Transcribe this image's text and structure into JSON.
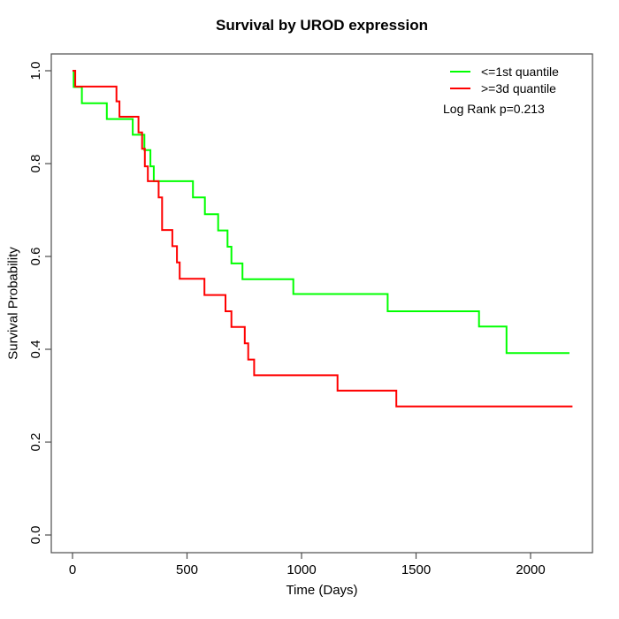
{
  "chart_data": {
    "type": "line",
    "variant": "kaplan_meier_step",
    "title": "Survival by UROD expression",
    "xlabel": "Time (Days)",
    "ylabel": "Survival Probability",
    "xlim": [
      0,
      2200
    ],
    "ylim": [
      0.0,
      1.0
    ],
    "xticks": [
      "0",
      "500",
      "1000",
      "1500",
      "2000"
    ],
    "xtick_values": [
      0,
      500,
      1000,
      1500,
      2000
    ],
    "yticks": [
      "0.0",
      "0.2",
      "0.4",
      "0.6",
      "0.8",
      "1.0"
    ],
    "ytick_values": [
      0.0,
      0.2,
      0.4,
      0.6,
      0.8,
      1.0
    ],
    "grid": false,
    "legend_position": "top-right",
    "annotation": "Log Rank p=0.213",
    "series": [
      {
        "name": "<=1st quantile",
        "color": "#00ff00",
        "start": [
          0,
          1.0
        ],
        "steps": [
          [
            5,
            0.965
          ],
          [
            41,
            0.93
          ],
          [
            150,
            0.896
          ],
          [
            263,
            0.862
          ],
          [
            314,
            0.829
          ],
          [
            340,
            0.794
          ],
          [
            355,
            0.762
          ],
          [
            526,
            0.727
          ],
          [
            578,
            0.691
          ],
          [
            636,
            0.656
          ],
          [
            677,
            0.621
          ],
          [
            694,
            0.585
          ],
          [
            742,
            0.551
          ],
          [
            964,
            0.519
          ],
          [
            1376,
            0.482
          ],
          [
            1775,
            0.449
          ],
          [
            1895,
            0.392
          ]
        ],
        "end_time": 2170
      },
      {
        "name": ">=3d quantile",
        "color": "#ff0000",
        "start": [
          0,
          1.0
        ],
        "steps": [
          [
            12,
            0.966
          ],
          [
            192,
            0.934
          ],
          [
            205,
            0.901
          ],
          [
            288,
            0.867
          ],
          [
            304,
            0.832
          ],
          [
            316,
            0.794
          ],
          [
            329,
            0.762
          ],
          [
            376,
            0.727
          ],
          [
            391,
            0.657
          ],
          [
            436,
            0.622
          ],
          [
            456,
            0.587
          ],
          [
            468,
            0.552
          ],
          [
            576,
            0.517
          ],
          [
            668,
            0.482
          ],
          [
            694,
            0.448
          ],
          [
            752,
            0.413
          ],
          [
            767,
            0.378
          ],
          [
            793,
            0.344
          ],
          [
            1157,
            0.311
          ],
          [
            1414,
            0.277
          ]
        ],
        "end_time": 2183
      }
    ]
  },
  "legend": {
    "items": [
      {
        "label": "<=1st quantile",
        "color": "#00ff00"
      },
      {
        "label": ">=3d quantile",
        "color": "#ff0000"
      }
    ],
    "annotation": "Log Rank p=0.213"
  },
  "colors": {
    "group_low": "#00ff00",
    "group_high": "#ff0000",
    "axis": "#4d4d4d",
    "text": "#000000",
    "background": "#ffffff"
  }
}
